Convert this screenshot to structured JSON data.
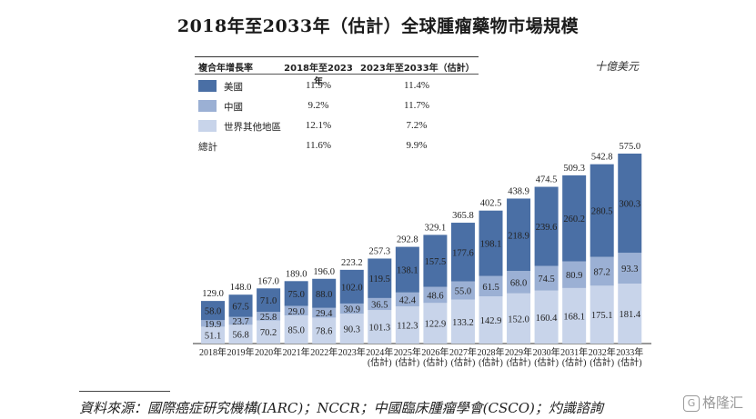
{
  "title": "2018年至2033年（估計）全球腫瘤藥物市場規模",
  "unit": "十億美元",
  "growth_table": {
    "headers": [
      "複合年增長率",
      "2018年至2023年",
      "2023年至2033年（估計）"
    ],
    "rows": [
      {
        "label": "美國",
        "swatch": "#4a6fa5",
        "v1": "11.9%",
        "v2": "11.4%"
      },
      {
        "label": "中國",
        "swatch": "#9bb0d4",
        "v1": "9.2%",
        "v2": "11.7%"
      },
      {
        "label": "世界其他地區",
        "swatch": "#c8d4ea",
        "v1": "12.1%",
        "v2": "7.2%"
      },
      {
        "label": "總計",
        "swatch": "",
        "v1": "11.6%",
        "v2": "9.9%"
      }
    ]
  },
  "chart_data": {
    "type": "bar",
    "stacked": true,
    "categories": [
      "2018年",
      "2019年",
      "2020年",
      "2021年",
      "2022年",
      "2023年",
      "2024年\n(估計)",
      "2025年\n(估計)",
      "2026年\n(估計)",
      "2027年\n(估計)",
      "2028年\n(估計)",
      "2029年\n(估計)",
      "2030年\n(估計)",
      "2031年\n(估計)",
      "2032年\n(估計)",
      "2033年\n(估計)"
    ],
    "series": [
      {
        "name": "世界其他地區",
        "color": "#c8d4ea",
        "values": [
          51.1,
          56.8,
          70.2,
          85.0,
          78.6,
          90.3,
          101.3,
          112.3,
          122.9,
          133.2,
          142.9,
          152.0,
          160.4,
          168.1,
          175.1,
          181.4
        ]
      },
      {
        "name": "中國",
        "color": "#9bb0d4",
        "values": [
          19.9,
          23.7,
          25.8,
          29.0,
          29.4,
          30.9,
          36.5,
          42.4,
          48.6,
          55.0,
          61.5,
          68.0,
          74.5,
          80.9,
          87.2,
          93.3
        ]
      },
      {
        "name": "美國",
        "color": "#4a6fa5",
        "values": [
          58.0,
          67.5,
          71.0,
          75.0,
          88.0,
          102.0,
          119.5,
          138.1,
          157.5,
          177.6,
          198.1,
          218.9,
          239.6,
          260.2,
          280.5,
          300.3
        ]
      }
    ],
    "totals": [
      129.0,
      148.0,
      167.0,
      189.0,
      196.0,
      223.2,
      257.3,
      292.8,
      329.1,
      365.8,
      402.5,
      438.9,
      474.5,
      509.3,
      542.8,
      575.0
    ],
    "ylim": [
      0,
      575
    ],
    "grid": false,
    "legend": "table at top-left"
  },
  "source": "資料來源：國際癌症研究機構(IARC)；NCCR；中國臨床腫瘤學會(CSCO)；灼識諮詢",
  "watermark": "格隆汇"
}
